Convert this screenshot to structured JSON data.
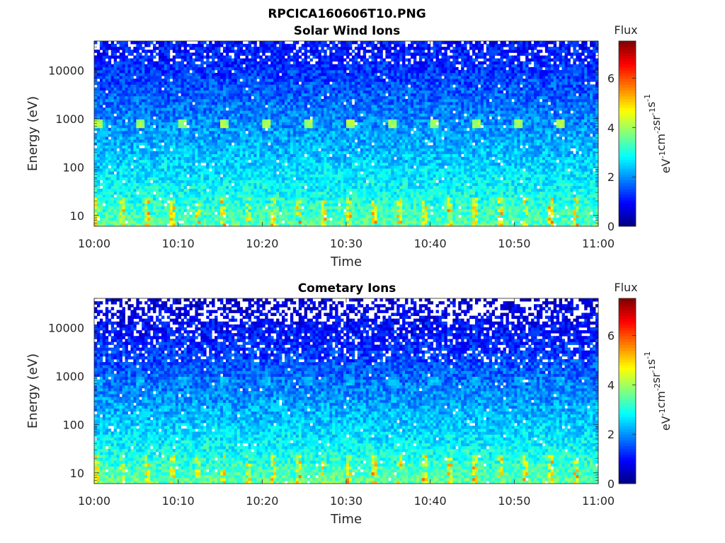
{
  "figure_title": "RPCICA160606T10.PNG",
  "chart_data": [
    {
      "type": "heatmap",
      "title": "Solar Wind Ions",
      "xlabel": "Time",
      "ylabel": "Energy (eV)",
      "x_ticks": [
        "10:00",
        "10:10",
        "10:20",
        "10:30",
        "10:40",
        "10:50",
        "11:00"
      ],
      "x_range": [
        "10:00",
        "11:00"
      ],
      "y_scale": "log",
      "y_ticks": [
        "10",
        "100",
        "1000",
        "10000"
      ],
      "y_range": [
        6,
        40000
      ],
      "colorbar": {
        "title": "Flux",
        "label": "eV-1cm-2sr-1s-1",
        "label_parts": [
          [
            "eV",
            "-1"
          ],
          [
            "cm",
            "-2"
          ],
          [
            "sr",
            "-1"
          ],
          [
            "s",
            "-1"
          ]
        ],
        "ticks": [
          "0",
          "2",
          "4",
          "6"
        ],
        "range": [
          0,
          7.5
        ],
        "colormap": "jet"
      },
      "notes_pattern": {
        "peak_energy_eV": 750,
        "peak_flux": 4.0,
        "low_energy_flux": 3.5,
        "high_energy_flux": 1.0
      }
    },
    {
      "type": "heatmap",
      "title": "Cometary Ions",
      "xlabel": "Time",
      "ylabel": "Energy (eV)",
      "x_ticks": [
        "10:00",
        "10:10",
        "10:20",
        "10:30",
        "10:40",
        "10:50",
        "11:00"
      ],
      "x_range": [
        "10:00",
        "11:00"
      ],
      "y_scale": "log",
      "y_ticks": [
        "10",
        "100",
        "1000",
        "10000"
      ],
      "y_range": [
        6,
        40000
      ],
      "colorbar": {
        "title": "Flux",
        "label": "eV-1cm-2sr-1s-1",
        "label_parts": [
          [
            "eV",
            "-1"
          ],
          [
            "cm",
            "-2"
          ],
          [
            "sr",
            "-1"
          ],
          [
            "s",
            "-1"
          ]
        ],
        "ticks": [
          "0",
          "2",
          "4",
          "6"
        ],
        "range": [
          0,
          7.5
        ],
        "colormap": "jet"
      },
      "notes_pattern": {
        "peak_energy_eV": 750,
        "peak_flux": 2.3,
        "low_energy_flux": 3.6,
        "high_energy_flux": 0.6
      }
    }
  ]
}
